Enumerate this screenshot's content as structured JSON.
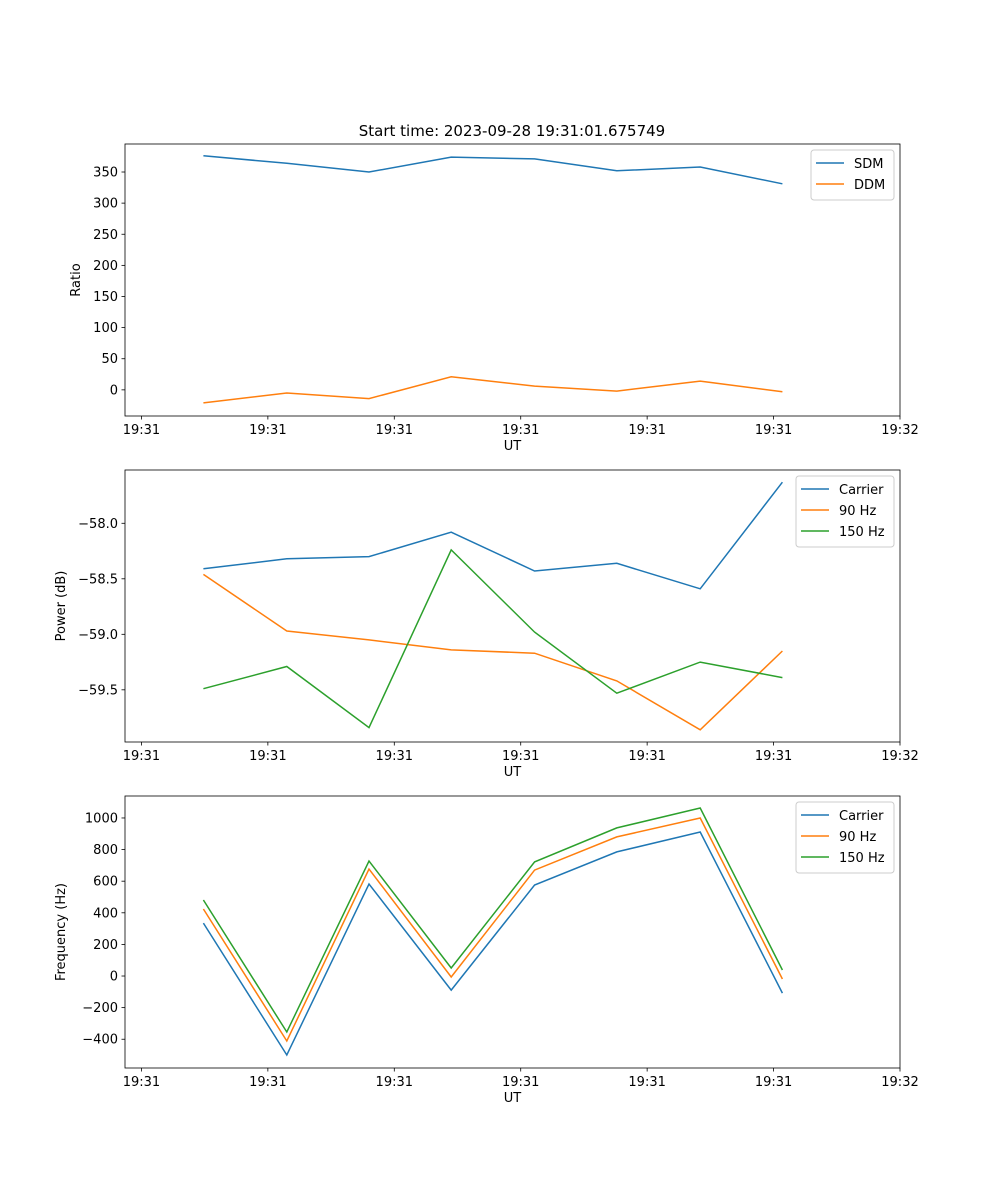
{
  "title": "Start time: 2023-09-28 19:31:01.675749",
  "chart_data": [
    {
      "type": "line",
      "xlabel": "UT",
      "ylabel": "Ratio",
      "x_seconds_after_19_31_00": [
        4.9,
        11.5,
        18.0,
        24.5,
        31.1,
        37.6,
        44.2,
        50.7
      ],
      "xlim": [
        -1.3,
        60
      ],
      "xticks": [
        0,
        10,
        20,
        30,
        40,
        50,
        60
      ],
      "xtick_labels": [
        "19:31",
        "19:31",
        "19:31",
        "19:31",
        "19:31",
        "19:31",
        "19:32"
      ],
      "ylim": [
        -42,
        395
      ],
      "yticks": [
        0,
        50,
        100,
        150,
        200,
        250,
        300,
        350
      ],
      "ytick_labels": [
        "0",
        "50",
        "100",
        "150",
        "200",
        "250",
        "300",
        "350"
      ],
      "legend": "top-right",
      "series": [
        {
          "name": "SDM",
          "color": "#1f77b4",
          "values": [
            376,
            364,
            350,
            374,
            371,
            352,
            358,
            331
          ]
        },
        {
          "name": "DDM",
          "color": "#ff7f0e",
          "values": [
            -21,
            -5,
            -14,
            21,
            6,
            -2,
            14,
            -3
          ]
        }
      ]
    },
    {
      "type": "line",
      "xlabel": "UT",
      "ylabel": "Power (dB)",
      "x_seconds_after_19_31_00": [
        4.9,
        11.5,
        18.0,
        24.5,
        31.1,
        37.6,
        44.2,
        50.7
      ],
      "xlim": [
        -1.3,
        60
      ],
      "xticks": [
        0,
        10,
        20,
        30,
        40,
        50,
        60
      ],
      "xtick_labels": [
        "19:31",
        "19:31",
        "19:31",
        "19:31",
        "19:31",
        "19:31",
        "19:32"
      ],
      "ylim": [
        -59.97,
        -57.52
      ],
      "yticks": [
        -58.0,
        -58.5,
        -59.0,
        -59.5
      ],
      "ytick_labels": [
        "−58.0",
        "−58.5",
        "−59.0",
        "−59.5"
      ],
      "legend": "top-right",
      "series": [
        {
          "name": "Carrier",
          "color": "#1f77b4",
          "values": [
            -58.41,
            -58.32,
            -58.3,
            -58.08,
            -58.43,
            -58.36,
            -58.59,
            -57.63
          ]
        },
        {
          "name": "90 Hz",
          "color": "#ff7f0e",
          "values": [
            -58.46,
            -58.97,
            -59.05,
            -59.14,
            -59.17,
            -59.42,
            -59.86,
            -59.15
          ]
        },
        {
          "name": "150 Hz",
          "color": "#2ca02c",
          "values": [
            -59.49,
            -59.29,
            -59.84,
            -58.24,
            -58.98,
            -59.53,
            -59.25,
            -59.39
          ]
        }
      ]
    },
    {
      "type": "line",
      "xlabel": "UT",
      "ylabel": "Frequency (Hz)",
      "x_seconds_after_19_31_00": [
        4.9,
        11.5,
        18.0,
        24.5,
        31.1,
        37.6,
        44.2,
        50.7
      ],
      "xlim": [
        -1.3,
        60
      ],
      "xticks": [
        0,
        10,
        20,
        30,
        40,
        50,
        60
      ],
      "xtick_labels": [
        "19:31",
        "19:31",
        "19:31",
        "19:31",
        "19:31",
        "19:31",
        "19:32"
      ],
      "ylim": [
        -582,
        1139
      ],
      "yticks": [
        1000,
        800,
        600,
        400,
        200,
        0,
        -200,
        -400
      ],
      "ytick_labels": [
        "1000",
        "800",
        "600",
        "400",
        "200",
        "0",
        "−200",
        "−400"
      ],
      "legend": "top-right",
      "series": [
        {
          "name": "Carrier",
          "color": "#1f77b4",
          "values": [
            335,
            -500,
            582,
            -89,
            576,
            785,
            911,
            -108
          ]
        },
        {
          "name": "90 Hz",
          "color": "#ff7f0e",
          "values": [
            424,
            -411,
            677,
            -6,
            670,
            880,
            1000,
            -19
          ]
        },
        {
          "name": "150 Hz",
          "color": "#2ca02c",
          "values": [
            481,
            -354,
            728,
            51,
            722,
            937,
            1063,
            38
          ]
        }
      ]
    }
  ]
}
